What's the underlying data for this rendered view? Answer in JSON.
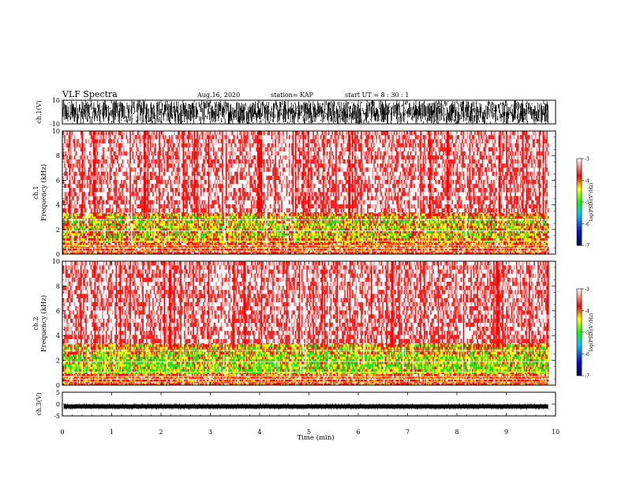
{
  "header": {
    "title": "VLF Spectra",
    "date": "Aug.16, 2020",
    "station": "station= KAP",
    "start": "start  UT  =   8  : 30 : 1"
  },
  "chart_data": [
    {
      "type": "line",
      "name": "channel-1-waveform",
      "ylabel": "ch.1(V)",
      "ylim": [
        -10,
        10
      ],
      "yticks": [
        "10",
        "-10"
      ],
      "xlim": [
        0,
        10
      ],
      "amplitude": "saturated, fills full range from 0 to ~9.85 min"
    },
    {
      "type": "heatmap",
      "name": "channel-1-spectrogram",
      "ylabel": "ch.1\nFrequency  (kHz)",
      "ylim": [
        0,
        10
      ],
      "yticks": [
        "0",
        "2",
        "4",
        "6",
        "8",
        "10"
      ],
      "xlim": [
        0,
        10
      ],
      "x_end_min": 9.85,
      "bands": [
        {
          "f_from": 0,
          "f_to": 1.0,
          "level": "red-yellow"
        },
        {
          "f_from": 1.0,
          "f_to": 3.3,
          "level": "yellow-green, strongest near 1.5-3 kHz"
        },
        {
          "f_from": 3.3,
          "f_to": 10,
          "level": "red to white (sparse)"
        }
      ],
      "colorbar": {
        "label": "log(PSD)(V²/Hz)",
        "ticks": [
          "-3",
          "-4",
          "-5",
          "-6",
          "-7"
        ],
        "range": [
          -7,
          -3
        ]
      }
    },
    {
      "type": "heatmap",
      "name": "channel-2-spectrogram",
      "ylabel": "ch.2\nFrequency  (kHz)",
      "ylim": [
        0,
        10
      ],
      "yticks": [
        "0",
        "2",
        "4",
        "6",
        "8",
        "10"
      ],
      "xlim": [
        0,
        10
      ],
      "x_end_min": 9.85,
      "bands": [
        {
          "f_from": 0,
          "f_to": 0.9,
          "level": "red-yellow"
        },
        {
          "f_from": 0.9,
          "f_to": 3.3,
          "level": "green-yellow, strongest 0.9-2.5 kHz"
        },
        {
          "f_from": 3.3,
          "f_to": 10,
          "level": "red to white (sparse)"
        }
      ],
      "colorbar": {
        "label": "log(PSD)(V²/Hz)",
        "ticks": [
          "-3",
          "-4",
          "-5",
          "-6",
          "-7"
        ],
        "range": [
          -7,
          -3
        ]
      }
    },
    {
      "type": "line",
      "name": "channel-3-waveform",
      "ylabel": "ch.3(V)",
      "ylim": [
        -5,
        5
      ],
      "yticks": [
        "5",
        "0",
        "-5"
      ],
      "xlim": [
        0,
        10
      ],
      "level": -1,
      "amplitude": "narrow band around -1 V"
    }
  ],
  "xaxis": {
    "label": "Time  (min)",
    "ticks": [
      "0",
      "1",
      "2",
      "3",
      "4",
      "5",
      "6",
      "7",
      "8",
      "9",
      "10"
    ],
    "range": [
      0,
      10
    ]
  },
  "colors": {
    "c1": "#000080",
    "c2": "#0000ff",
    "c3": "#00ff00",
    "c4": "#ffff00",
    "c5": "#ff0000",
    "c6": "#ffffff"
  }
}
